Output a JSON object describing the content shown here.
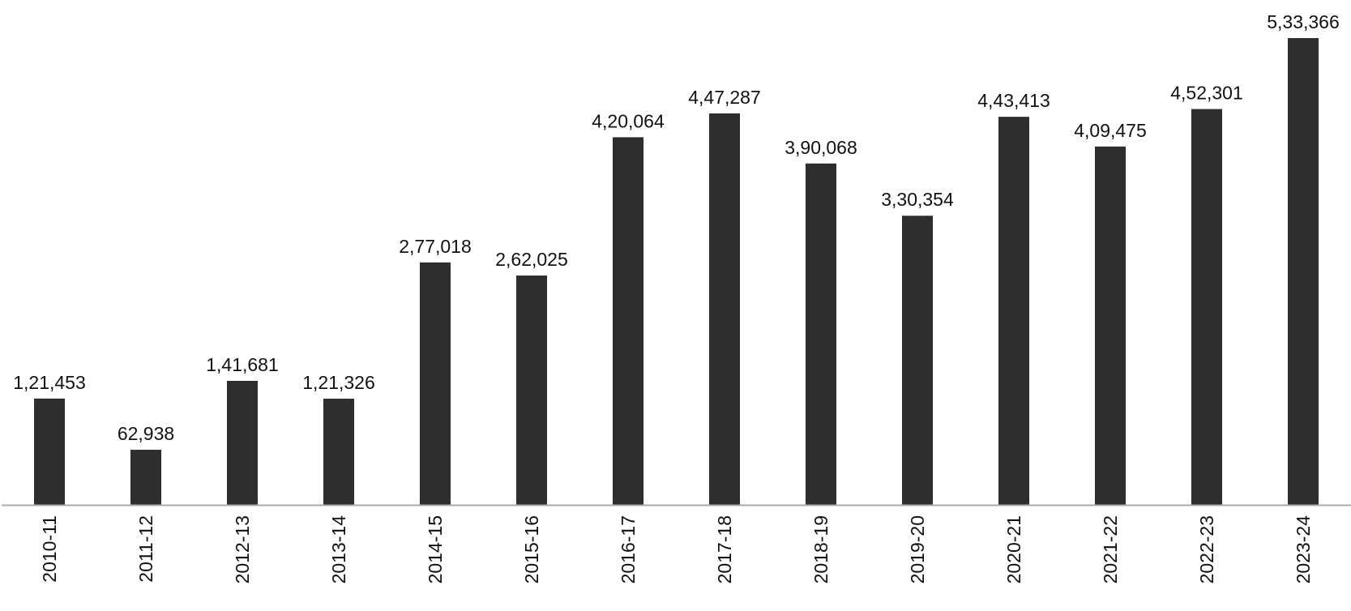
{
  "chart_data": {
    "type": "bar",
    "title": "",
    "xlabel": "",
    "ylabel": "",
    "categories": [
      "2010-11",
      "2011-12",
      "2012-13",
      "2013-14",
      "2014-15",
      "2015-16",
      "2016-17",
      "2017-18",
      "2018-19",
      "2019-20",
      "2020-21",
      "2021-22",
      "2022-23",
      "2023-24"
    ],
    "values": [
      121453,
      62938,
      141681,
      121326,
      277018,
      262025,
      420064,
      447287,
      390068,
      330354,
      443413,
      409475,
      452301,
      533366
    ],
    "data_labels": [
      "1,21,453",
      "62,938",
      "1,41,681",
      "1,21,326",
      "2,77,018",
      "2,62,025",
      "4,20,064",
      "4,47,287",
      "3,90,068",
      "3,30,354",
      "4,43,413",
      "4,09,475",
      "4,52,301",
      "5,33,366"
    ],
    "ylim": [
      0,
      533366
    ],
    "grid": false,
    "legend": "none",
    "colors": {
      "bar": "#2d2e2d",
      "axis": "#aaaaaa"
    }
  }
}
